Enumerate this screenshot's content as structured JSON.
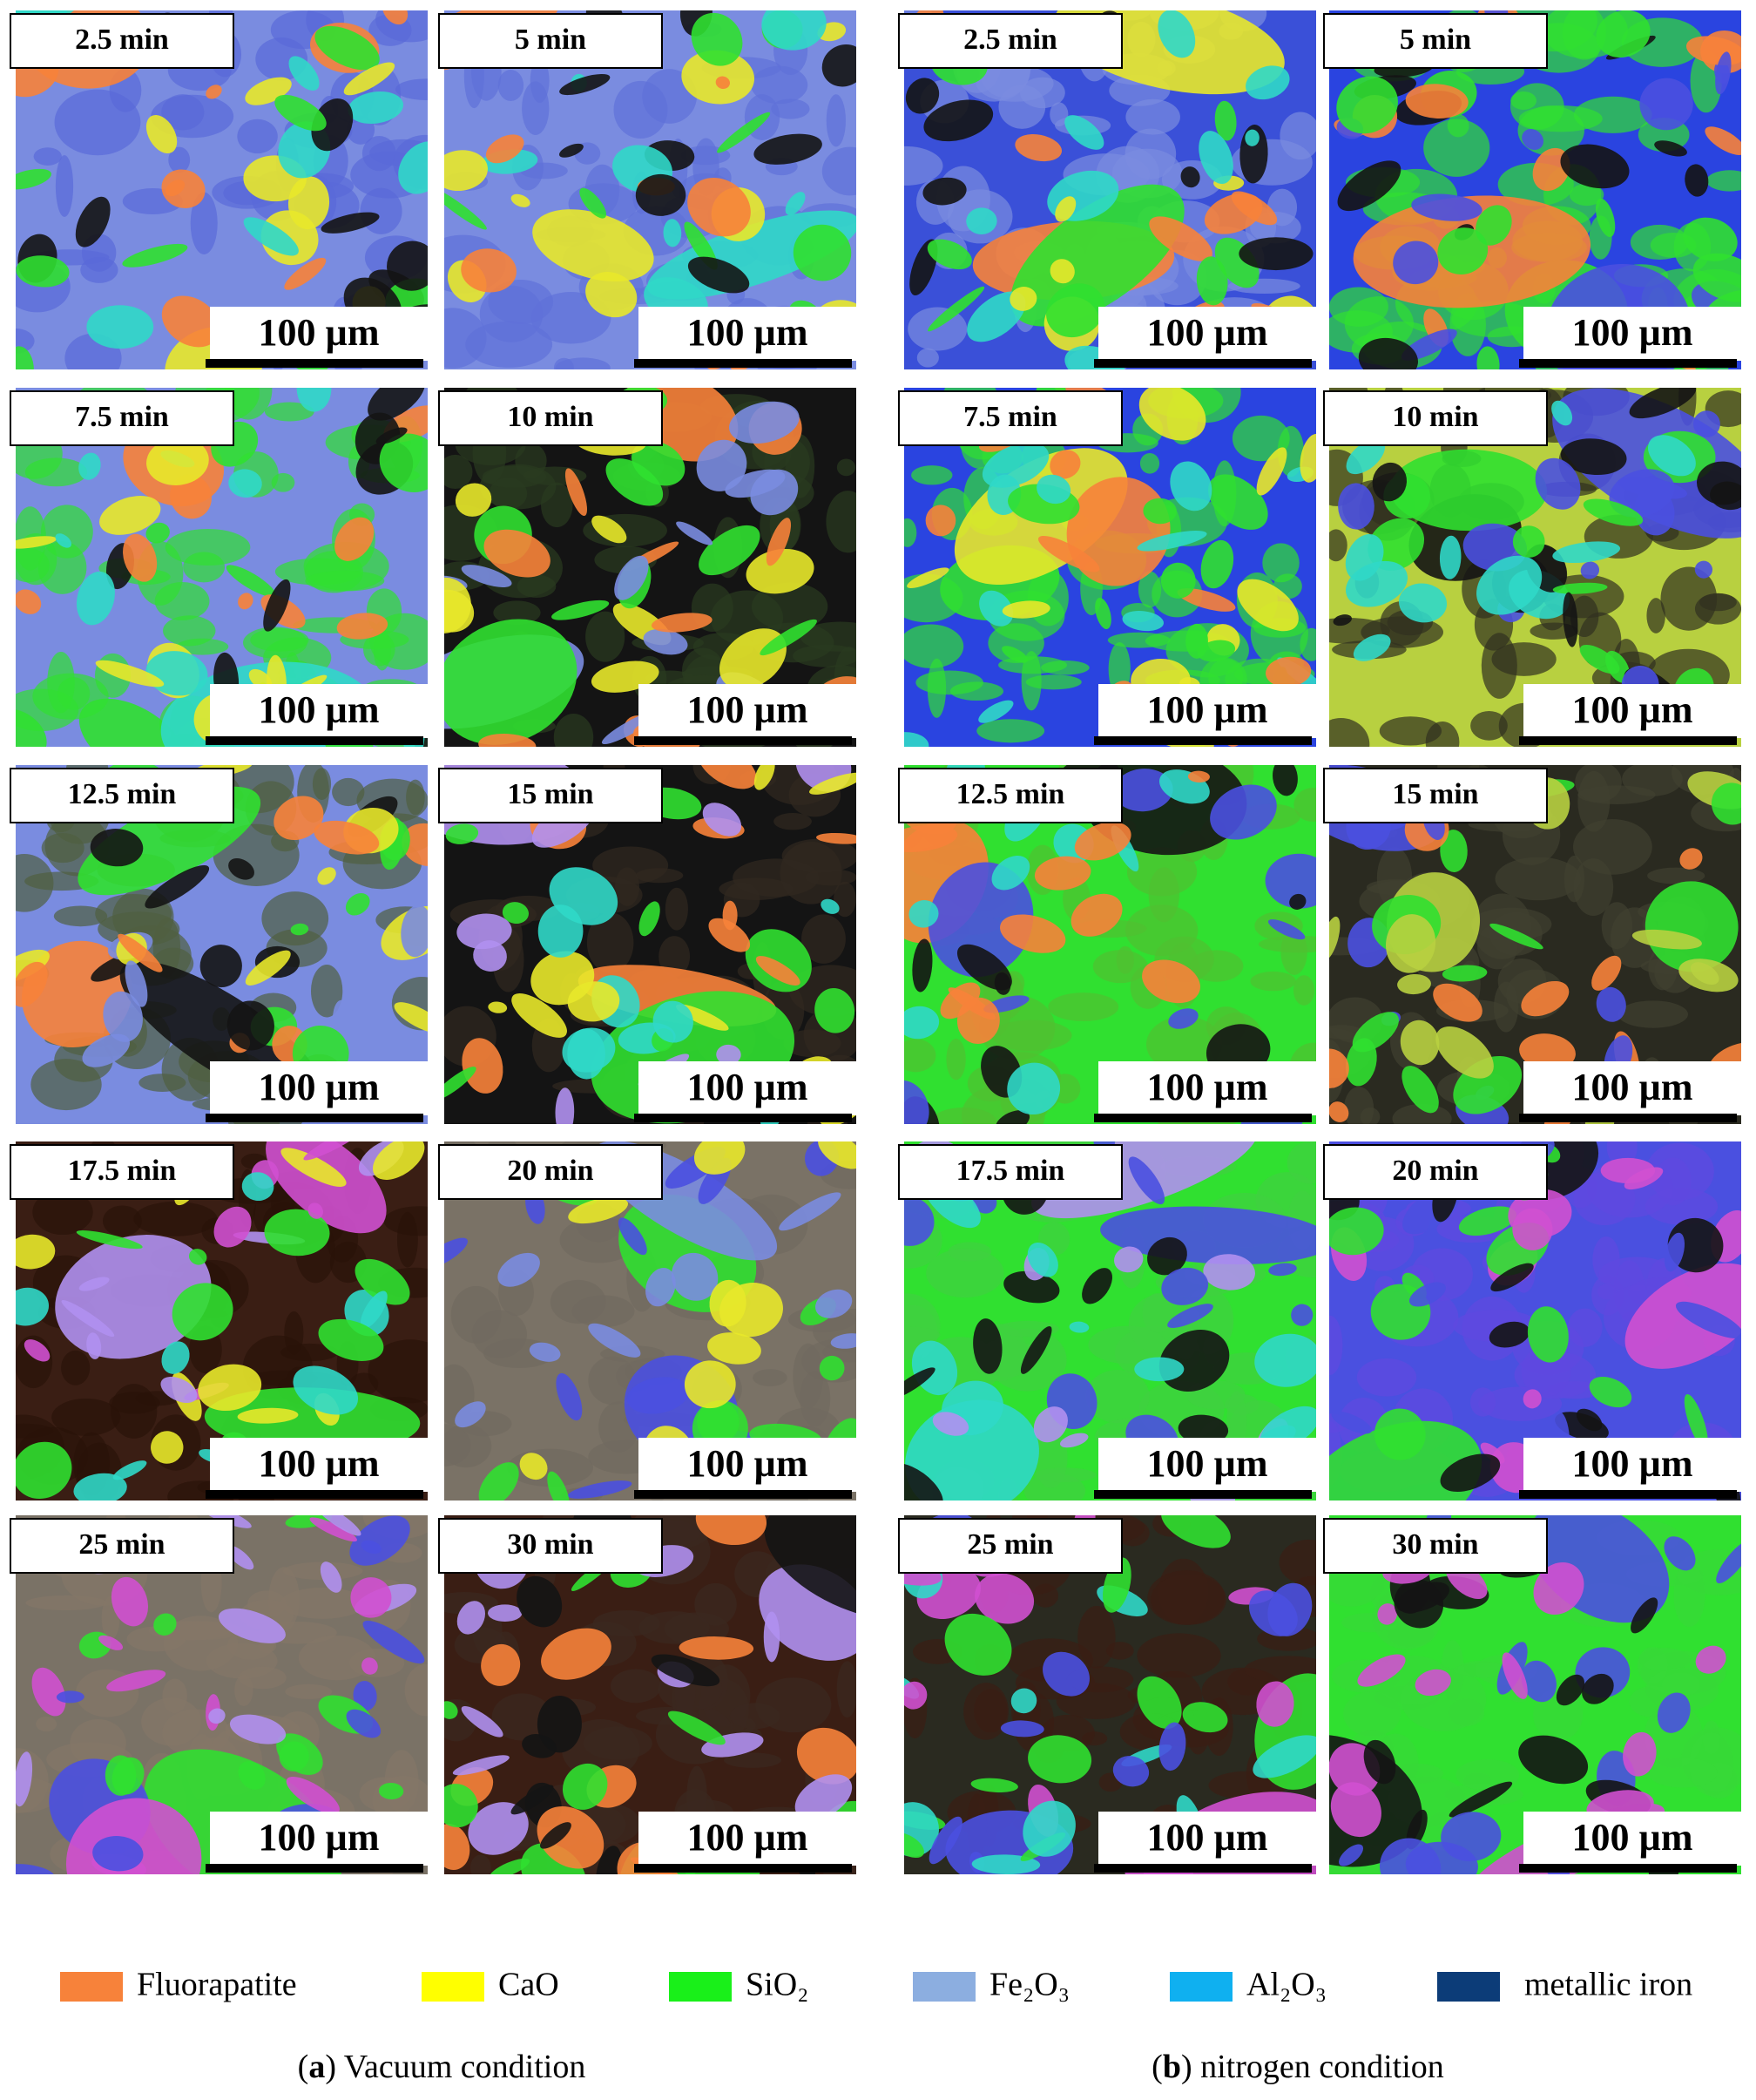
{
  "panels": [
    {
      "caption": [
        "(",
        "a",
        ") Vacuum condition"
      ],
      "tiles": [
        {
          "time": "2.5 min",
          "scale": "100 µm"
        },
        {
          "time": "5 min",
          "scale": "100 µm"
        },
        {
          "time": "7.5 min",
          "scale": "100 µm"
        },
        {
          "time": "10 min",
          "scale": "100 µm"
        },
        {
          "time": "12.5 min",
          "scale": "100 µm"
        },
        {
          "time": "15 min",
          "scale": "100 µm"
        },
        {
          "time": "17.5 min",
          "scale": "100 µm"
        },
        {
          "time": "20 min",
          "scale": "100 µm"
        },
        {
          "time": "25  min",
          "scale": "100 µm"
        },
        {
          "time": "30 min",
          "scale": "100 µm"
        }
      ]
    },
    {
      "caption": [
        "(",
        "b",
        ") nitrogen condition"
      ],
      "tiles": [
        {
          "time": "2.5 min",
          "scale": "100 µm"
        },
        {
          "time": "5 min",
          "scale": "100 µm"
        },
        {
          "time": "7.5 min",
          "scale": "100 µm"
        },
        {
          "time": "10 min",
          "scale": "100 µm"
        },
        {
          "time": "12.5 min",
          "scale": "100 µm"
        },
        {
          "time": "15 min",
          "scale": "100 µm"
        },
        {
          "time": "17.5 min",
          "scale": "100 µm"
        },
        {
          "time": "20 min",
          "scale": "100 µm"
        },
        {
          "time": "25 min",
          "scale": "100 µm"
        },
        {
          "time": "30 min",
          "scale": "100 µm"
        }
      ]
    }
  ],
  "legend": [
    {
      "name": "Fluorapatite",
      "color": "#f7823a"
    },
    {
      "name": "CaO",
      "color": "#ffff00"
    },
    {
      "name": "SiO₂",
      "color": "#19f019"
    },
    {
      "name": "Fe₂O₃",
      "color": "#8caee0"
    },
    {
      "name": "Al₂O₃",
      "color": "#0fb0f0"
    },
    {
      "name": "metallic iron",
      "color": "#0c3c78"
    }
  ]
}
